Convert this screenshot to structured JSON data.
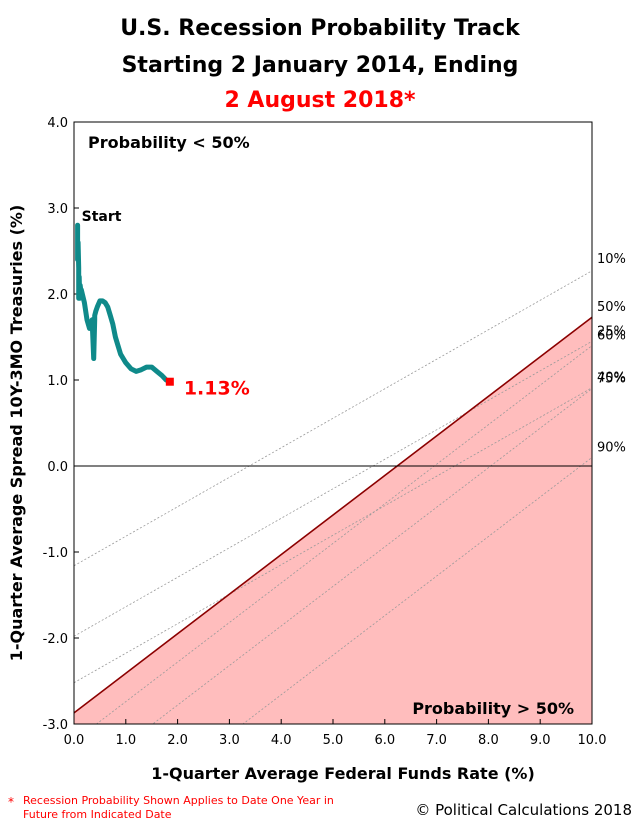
{
  "title_line1": "U.S. Recession Probability Track",
  "title_line2": "Starting 2 January 2014, Ending",
  "title_line3": "2 August 2018*",
  "footnote_marker": "*",
  "footnote": "Recession Probability Shown Applies to Date One Year in Future from Indicated Date",
  "copyright": "© Political Calculations 2018",
  "colors": {
    "track": "#0f8a8a",
    "endpoint": "#ff0000",
    "recession_fill": "#ffbdbd",
    "threshold_line": "#8b0000",
    "title_accent": "#ff0000"
  },
  "chart_data": {
    "type": "line",
    "xlabel": "1-Quarter Average Federal Funds Rate (%)",
    "ylabel": "1-Quarter Average Spread 10Y-3MO Treasuries (%)",
    "xlim": [
      0,
      10
    ],
    "ylim": [
      -3,
      4
    ],
    "x_ticks": [
      "0.0",
      "1.0",
      "2.0",
      "3.0",
      "4.0",
      "5.0",
      "6.0",
      "7.0",
      "8.0",
      "9.0",
      "10.0"
    ],
    "y_ticks": [
      "-3.0",
      "-2.0",
      "-1.0",
      "0.0",
      "1.0",
      "2.0",
      "3.0",
      "4.0"
    ],
    "grid": false,
    "region_labels": {
      "upper": "Probability < 50%",
      "lower": "Probability > 50%"
    },
    "probability_lines": [
      {
        "label": "10%",
        "y_intercept": -1.16,
        "slope": 0.343
      },
      {
        "label": "25%",
        "y_intercept": -1.98,
        "slope": 0.343
      },
      {
        "label": "40%",
        "y_intercept": -2.52,
        "slope": 0.343
      },
      {
        "label": "50%",
        "y_intercept": -2.87,
        "slope": 0.46,
        "threshold": true
      },
      {
        "label": "60%",
        "y_intercept": -3.2,
        "slope": 0.46
      },
      {
        "label": "75%",
        "y_intercept": -3.7,
        "slope": 0.46
      },
      {
        "label": "90%",
        "y_intercept": -4.5,
        "slope": 0.46
      }
    ],
    "series": [
      {
        "x": [
          0.07,
          0.07,
          0.08,
          0.09,
          0.09,
          0.1,
          0.11,
          0.12,
          0.13,
          0.14,
          0.16,
          0.2,
          0.25,
          0.3,
          0.35,
          0.38,
          0.4,
          0.4,
          0.42,
          0.45,
          0.5,
          0.55,
          0.6,
          0.65,
          0.7,
          0.75,
          0.8,
          0.85,
          0.9,
          0.95,
          1.0,
          1.1,
          1.2,
          1.3,
          1.4,
          1.5,
          1.6,
          1.7,
          1.78,
          1.85
        ],
        "y": [
          2.8,
          2.4,
          2.6,
          2.3,
          1.95,
          2.2,
          1.95,
          2.1,
          2.05,
          2.05,
          2.0,
          1.9,
          1.7,
          1.6,
          1.7,
          1.25,
          1.7,
          1.75,
          1.8,
          1.85,
          1.92,
          1.92,
          1.9,
          1.85,
          1.75,
          1.65,
          1.5,
          1.4,
          1.3,
          1.25,
          1.2,
          1.13,
          1.1,
          1.12,
          1.15,
          1.15,
          1.1,
          1.05,
          1.0,
          0.98
        ]
      }
    ],
    "annotations": {
      "start": "Start",
      "end_value": "1.13%"
    },
    "endpoint": {
      "x": 1.85,
      "y": 0.98
    }
  }
}
